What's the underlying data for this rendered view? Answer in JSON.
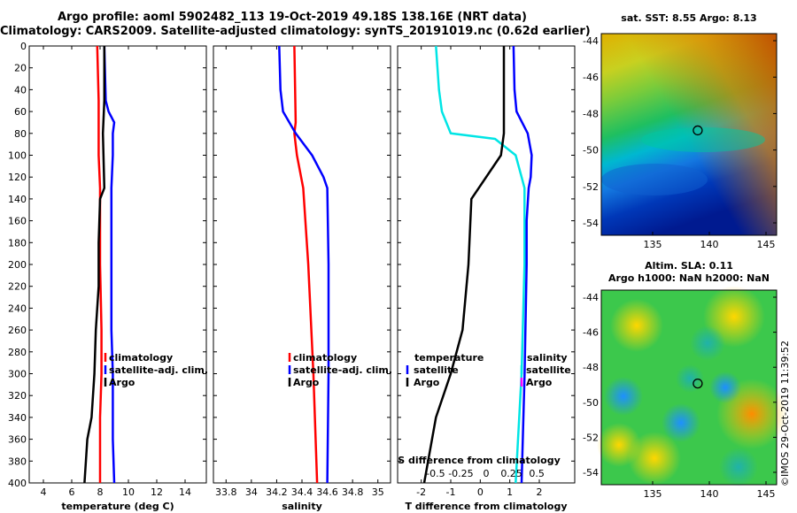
{
  "header": {
    "line1": "Argo profile: aoml 5902482_113 19-Oct-2019 49.18S 138.16E (NRT data)",
    "line2": "Climatology: CARS2009. Satellite-adjusted climatology: synTS_20191019.nc (0.62d earlier)"
  },
  "colors": {
    "climatology": "#ff0000",
    "satellite": "#0000ff",
    "argo": "#000000",
    "satellite_temp": "#00e5e5",
    "salinity_clim": "#ff00ff"
  },
  "chart_data": [
    {
      "type": "line",
      "id": "temperature",
      "xlabel": "temperature (deg C)",
      "ylabel": "",
      "xlim": [
        3,
        15.5
      ],
      "ylim": [
        400,
        0
      ],
      "xticks": [
        4,
        6,
        8,
        10,
        12,
        14
      ],
      "yticks": [
        0,
        20,
        40,
        60,
        80,
        100,
        120,
        140,
        160,
        180,
        200,
        220,
        240,
        260,
        280,
        300,
        320,
        340,
        360,
        380,
        400
      ],
      "legend": [
        "climatology",
        "satellite-adj. clim.",
        "Argo"
      ],
      "series": [
        {
          "name": "climatology",
          "color": "#ff0000",
          "depth": [
            0,
            50,
            100,
            130,
            145,
            160,
            200,
            260,
            300,
            340,
            400
          ],
          "values": [
            7.8,
            7.9,
            7.9,
            8.0,
            8.0,
            8.0,
            8.0,
            8.1,
            8.1,
            8.0,
            8.0
          ]
        },
        {
          "name": "satellite-adj. clim.",
          "color": "#0000ff",
          "depth": [
            0,
            50,
            60,
            70,
            80,
            100,
            130,
            150,
            200,
            260,
            300,
            360,
            400
          ],
          "values": [
            8.3,
            8.4,
            8.6,
            9.0,
            8.9,
            8.9,
            8.8,
            8.8,
            8.8,
            8.8,
            8.9,
            8.9,
            9.0
          ]
        },
        {
          "name": "Argo",
          "color": "#000000",
          "depth": [
            0,
            50,
            80,
            130,
            140,
            180,
            220,
            260,
            300,
            340,
            360,
            380,
            400
          ],
          "values": [
            8.3,
            8.3,
            8.2,
            8.3,
            8.0,
            7.9,
            7.9,
            7.7,
            7.6,
            7.4,
            7.1,
            7.0,
            6.9
          ]
        }
      ]
    },
    {
      "type": "line",
      "id": "salinity",
      "xlabel": "salinity",
      "ylabel": "",
      "xlim": [
        33.7,
        35.1
      ],
      "ylim": [
        400,
        0
      ],
      "xticks": [
        33.8,
        34,
        34.2,
        34.4,
        34.6,
        34.8,
        35
      ],
      "legend": [
        "climatology",
        "satellite-adj. clim.",
        "Argo"
      ],
      "series": [
        {
          "name": "climatology",
          "color": "#ff0000",
          "depth": [
            0,
            70,
            80,
            100,
            130,
            200,
            300,
            400
          ],
          "values": [
            34.34,
            34.35,
            34.34,
            34.36,
            34.41,
            34.45,
            34.49,
            34.52
          ]
        },
        {
          "name": "satellite-adj. clim.",
          "color": "#0000ff",
          "depth": [
            0,
            40,
            60,
            80,
            100,
            120,
            130,
            200,
            300,
            400
          ],
          "values": [
            34.22,
            34.23,
            34.25,
            34.35,
            34.48,
            34.57,
            34.6,
            34.61,
            34.61,
            34.6
          ]
        }
      ]
    },
    {
      "type": "line",
      "id": "t_difference",
      "xlabel": "T difference from climatology",
      "ylabel": "",
      "xlim": [
        -2.8,
        3.2
      ],
      "ylim": [
        400,
        0
      ],
      "xticks": [
        -2,
        -1,
        0,
        1,
        2
      ],
      "s_axis": {
        "label": "S difference from climatology",
        "ticks": [
          "-0.5",
          "-0.25",
          "0",
          "0.25",
          "0.5"
        ],
        "values": [
          -0.5,
          -0.25,
          0,
          0.25,
          0.5
        ]
      },
      "legend_temperature": {
        "title": "temperature",
        "items": [
          "satellite",
          "Argo"
        ]
      },
      "legend_salinity": {
        "title": "salinity",
        "items": [
          "satellite",
          "Argo"
        ]
      },
      "series": [
        {
          "name": "temperature satellite",
          "color": "#00e5e5",
          "depth": [
            0,
            40,
            60,
            80,
            85,
            100,
            120,
            130,
            200,
            300,
            400
          ],
          "values": [
            -1.5,
            -1.4,
            -1.3,
            -1.0,
            0.5,
            1.2,
            1.4,
            1.5,
            1.5,
            1.4,
            1.2
          ]
        },
        {
          "name": "temperature Argo",
          "color": "#000000",
          "depth": [
            0,
            50,
            80,
            100,
            140,
            200,
            260,
            300,
            340,
            400
          ],
          "values": [
            0.8,
            0.8,
            0.8,
            0.7,
            -0.3,
            -0.4,
            -0.6,
            -1.0,
            -1.5,
            -1.9
          ]
        },
        {
          "name": "salinity satellite",
          "color": "#0000ff",
          "depth": [
            0,
            40,
            60,
            80,
            100,
            120,
            130,
            160,
            200,
            300,
            400
          ],
          "values": [
            0.27,
            0.28,
            0.3,
            0.41,
            0.45,
            0.44,
            0.42,
            0.4,
            0.4,
            0.38,
            0.35
          ]
        }
      ]
    }
  ],
  "maps": {
    "sst": {
      "title": "sat. SST: 8.55 Argo: 8.13",
      "lat_ticks": [
        "-44",
        "-46",
        "-48",
        "-50",
        "-52",
        "-54"
      ],
      "lon_ticks": [
        "135",
        "140",
        "145"
      ]
    },
    "sla": {
      "title1": "Altim. SLA: 0.11",
      "title2": "Argo h1000: NaN h2000: NaN",
      "lat_ticks": [
        "-44",
        "-46",
        "-48",
        "-50",
        "-52",
        "-54"
      ],
      "lon_ticks": [
        "135",
        "140",
        "145"
      ]
    }
  },
  "credit": "©IMOS 29-Oct-2019 11:39:52"
}
